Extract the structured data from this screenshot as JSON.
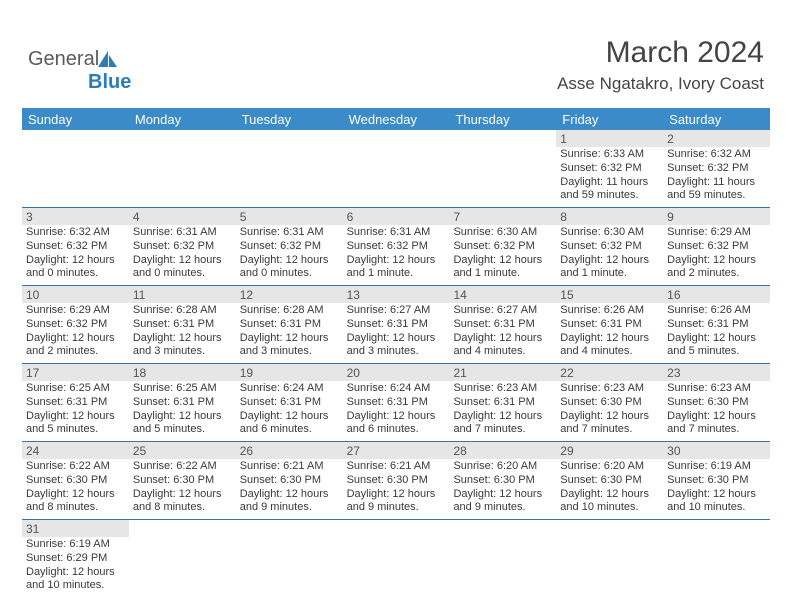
{
  "logo": {
    "text1": "General",
    "text2": "Blue"
  },
  "title": {
    "month": "March 2024",
    "location": "Asse Ngatakro, Ivory Coast"
  },
  "colors": {
    "header_bg": "#3b8bc8",
    "header_text": "#ffffff",
    "daynum_bg": "#e6e6e6",
    "border": "#3b72a8",
    "text": "#3a3a3a",
    "logo_blue": "#2a7db8"
  },
  "dayHeaders": [
    "Sunday",
    "Monday",
    "Tuesday",
    "Wednesday",
    "Thursday",
    "Friday",
    "Saturday"
  ],
  "weeks": [
    [
      null,
      null,
      null,
      null,
      null,
      {
        "n": "1",
        "sr": "Sunrise: 6:33 AM",
        "ss": "Sunset: 6:32 PM",
        "dl": "Daylight: 11 hours and 59 minutes."
      },
      {
        "n": "2",
        "sr": "Sunrise: 6:32 AM",
        "ss": "Sunset: 6:32 PM",
        "dl": "Daylight: 11 hours and 59 minutes."
      }
    ],
    [
      {
        "n": "3",
        "sr": "Sunrise: 6:32 AM",
        "ss": "Sunset: 6:32 PM",
        "dl": "Daylight: 12 hours and 0 minutes."
      },
      {
        "n": "4",
        "sr": "Sunrise: 6:31 AM",
        "ss": "Sunset: 6:32 PM",
        "dl": "Daylight: 12 hours and 0 minutes."
      },
      {
        "n": "5",
        "sr": "Sunrise: 6:31 AM",
        "ss": "Sunset: 6:32 PM",
        "dl": "Daylight: 12 hours and 0 minutes."
      },
      {
        "n": "6",
        "sr": "Sunrise: 6:31 AM",
        "ss": "Sunset: 6:32 PM",
        "dl": "Daylight: 12 hours and 1 minute."
      },
      {
        "n": "7",
        "sr": "Sunrise: 6:30 AM",
        "ss": "Sunset: 6:32 PM",
        "dl": "Daylight: 12 hours and 1 minute."
      },
      {
        "n": "8",
        "sr": "Sunrise: 6:30 AM",
        "ss": "Sunset: 6:32 PM",
        "dl": "Daylight: 12 hours and 1 minute."
      },
      {
        "n": "9",
        "sr": "Sunrise: 6:29 AM",
        "ss": "Sunset: 6:32 PM",
        "dl": "Daylight: 12 hours and 2 minutes."
      }
    ],
    [
      {
        "n": "10",
        "sr": "Sunrise: 6:29 AM",
        "ss": "Sunset: 6:32 PM",
        "dl": "Daylight: 12 hours and 2 minutes."
      },
      {
        "n": "11",
        "sr": "Sunrise: 6:28 AM",
        "ss": "Sunset: 6:31 PM",
        "dl": "Daylight: 12 hours and 3 minutes."
      },
      {
        "n": "12",
        "sr": "Sunrise: 6:28 AM",
        "ss": "Sunset: 6:31 PM",
        "dl": "Daylight: 12 hours and 3 minutes."
      },
      {
        "n": "13",
        "sr": "Sunrise: 6:27 AM",
        "ss": "Sunset: 6:31 PM",
        "dl": "Daylight: 12 hours and 3 minutes."
      },
      {
        "n": "14",
        "sr": "Sunrise: 6:27 AM",
        "ss": "Sunset: 6:31 PM",
        "dl": "Daylight: 12 hours and 4 minutes."
      },
      {
        "n": "15",
        "sr": "Sunrise: 6:26 AM",
        "ss": "Sunset: 6:31 PM",
        "dl": "Daylight: 12 hours and 4 minutes."
      },
      {
        "n": "16",
        "sr": "Sunrise: 6:26 AM",
        "ss": "Sunset: 6:31 PM",
        "dl": "Daylight: 12 hours and 5 minutes."
      }
    ],
    [
      {
        "n": "17",
        "sr": "Sunrise: 6:25 AM",
        "ss": "Sunset: 6:31 PM",
        "dl": "Daylight: 12 hours and 5 minutes."
      },
      {
        "n": "18",
        "sr": "Sunrise: 6:25 AM",
        "ss": "Sunset: 6:31 PM",
        "dl": "Daylight: 12 hours and 5 minutes."
      },
      {
        "n": "19",
        "sr": "Sunrise: 6:24 AM",
        "ss": "Sunset: 6:31 PM",
        "dl": "Daylight: 12 hours and 6 minutes."
      },
      {
        "n": "20",
        "sr": "Sunrise: 6:24 AM",
        "ss": "Sunset: 6:31 PM",
        "dl": "Daylight: 12 hours and 6 minutes."
      },
      {
        "n": "21",
        "sr": "Sunrise: 6:23 AM",
        "ss": "Sunset: 6:31 PM",
        "dl": "Daylight: 12 hours and 7 minutes."
      },
      {
        "n": "22",
        "sr": "Sunrise: 6:23 AM",
        "ss": "Sunset: 6:30 PM",
        "dl": "Daylight: 12 hours and 7 minutes."
      },
      {
        "n": "23",
        "sr": "Sunrise: 6:23 AM",
        "ss": "Sunset: 6:30 PM",
        "dl": "Daylight: 12 hours and 7 minutes."
      }
    ],
    [
      {
        "n": "24",
        "sr": "Sunrise: 6:22 AM",
        "ss": "Sunset: 6:30 PM",
        "dl": "Daylight: 12 hours and 8 minutes."
      },
      {
        "n": "25",
        "sr": "Sunrise: 6:22 AM",
        "ss": "Sunset: 6:30 PM",
        "dl": "Daylight: 12 hours and 8 minutes."
      },
      {
        "n": "26",
        "sr": "Sunrise: 6:21 AM",
        "ss": "Sunset: 6:30 PM",
        "dl": "Daylight: 12 hours and 9 minutes."
      },
      {
        "n": "27",
        "sr": "Sunrise: 6:21 AM",
        "ss": "Sunset: 6:30 PM",
        "dl": "Daylight: 12 hours and 9 minutes."
      },
      {
        "n": "28",
        "sr": "Sunrise: 6:20 AM",
        "ss": "Sunset: 6:30 PM",
        "dl": "Daylight: 12 hours and 9 minutes."
      },
      {
        "n": "29",
        "sr": "Sunrise: 6:20 AM",
        "ss": "Sunset: 6:30 PM",
        "dl": "Daylight: 12 hours and 10 minutes."
      },
      {
        "n": "30",
        "sr": "Sunrise: 6:19 AM",
        "ss": "Sunset: 6:30 PM",
        "dl": "Daylight: 12 hours and 10 minutes."
      }
    ],
    [
      {
        "n": "31",
        "sr": "Sunrise: 6:19 AM",
        "ss": "Sunset: 6:29 PM",
        "dl": "Daylight: 12 hours and 10 minutes."
      },
      null,
      null,
      null,
      null,
      null,
      null
    ]
  ]
}
